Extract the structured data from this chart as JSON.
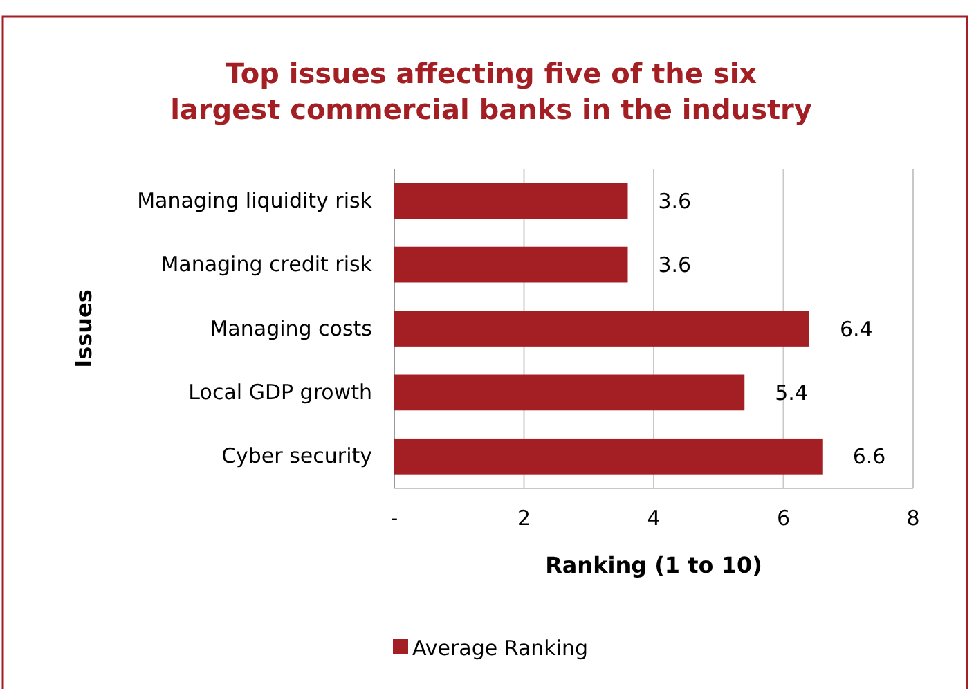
{
  "chart_data": {
    "type": "bar",
    "orientation": "horizontal",
    "title": "Top issues affecting five of the six largest commercial banks in the industry",
    "xlabel": "Ranking (1 to 10)",
    "ylabel": "Issues",
    "categories": [
      "Managing liquidity risk",
      "Managing credit risk",
      "Managing costs",
      "Local GDP growth",
      "Cyber security"
    ],
    "series": [
      {
        "name": "Average Ranking",
        "color": "#a31f24",
        "values": [
          3.6,
          3.6,
          6.4,
          5.4,
          6.6
        ]
      }
    ],
    "xlim": [
      0,
      8
    ],
    "xticks": [
      {
        "value": 0,
        "label": "-"
      },
      2,
      4,
      6,
      8
    ],
    "grid": "x",
    "legend": "bottom",
    "data_labels": true
  }
}
